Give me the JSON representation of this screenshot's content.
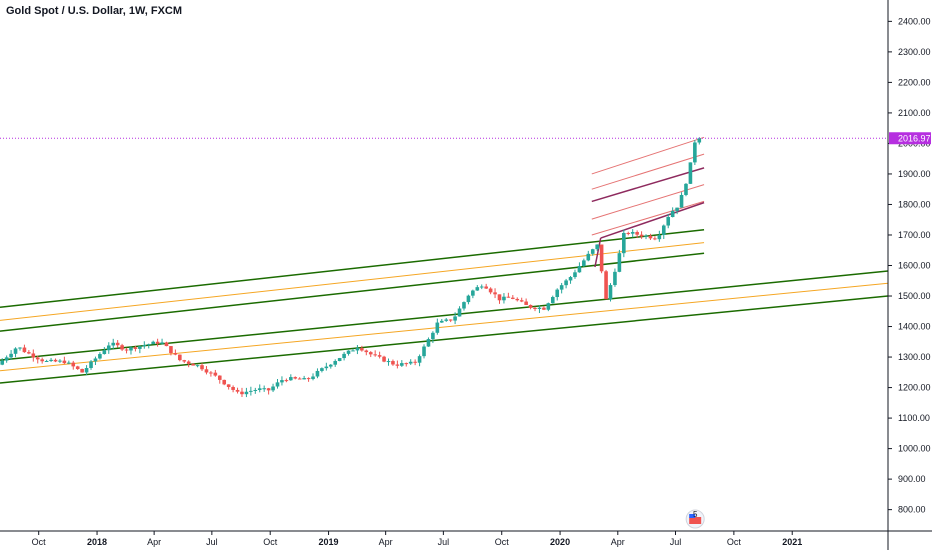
{
  "header": {
    "title": "Gold Spot / U.S. Dollar, 1W, FXCM"
  },
  "colors": {
    "up": "#26a69a",
    "down": "#ef5350",
    "channel_green": "#1b6b00",
    "channel_orange": "#f5a623",
    "pitchfork_red": "#e57373",
    "pitchfork_dark": "#8e2a5e",
    "last_price": "#b62fe0",
    "axis": "#131722"
  },
  "icons": {
    "badge": "flag-badge-icon",
    "badge_count": "5"
  },
  "chart_data": {
    "type": "candlestick",
    "title": "Gold Spot / U.S. Dollar, 1W, FXCM",
    "ylim": [
      730,
      2470
    ],
    "y_ticks": [
      800,
      900,
      1000,
      1100,
      1200,
      1300,
      1400,
      1500,
      1600,
      1700,
      1800,
      1900,
      2000,
      2100,
      2200,
      2300,
      2400
    ],
    "y_tick_labels": [
      "800.00",
      "900.00",
      "1000.00",
      "1100.00",
      "1200.00",
      "1300.00",
      "1400.00",
      "1500.00",
      "1600.00",
      "1700.00",
      "1800.00",
      "1900.00",
      "2000.00",
      "2100.00",
      "2200.00",
      "2300.00",
      "2400.00"
    ],
    "x_range": [
      "2017-08-01",
      "2021-06-01"
    ],
    "x_ticks": [
      {
        "date": "2017-10-01",
        "label": "Oct",
        "year": false
      },
      {
        "date": "2018-01-01",
        "label": "2018",
        "year": true
      },
      {
        "date": "2018-04-01",
        "label": "Apr",
        "year": false
      },
      {
        "date": "2018-07-01",
        "label": "Jul",
        "year": false
      },
      {
        "date": "2018-10-01",
        "label": "Oct",
        "year": false
      },
      {
        "date": "2019-01-01",
        "label": "2019",
        "year": true
      },
      {
        "date": "2019-04-01",
        "label": "Apr",
        "year": false
      },
      {
        "date": "2019-07-01",
        "label": "Jul",
        "year": false
      },
      {
        "date": "2019-10-01",
        "label": "Oct",
        "year": false
      },
      {
        "date": "2020-01-01",
        "label": "2020",
        "year": true
      },
      {
        "date": "2020-04-01",
        "label": "Apr",
        "year": false
      },
      {
        "date": "2020-07-01",
        "label": "Jul",
        "year": false
      },
      {
        "date": "2020-10-01",
        "label": "Oct",
        "year": false
      },
      {
        "date": "2021-01-01",
        "label": "2021",
        "year": true
      }
    ],
    "last_price": 2016.97,
    "last_price_label": "2016.97",
    "price_path": [
      [
        "2017-08-01",
        1275
      ],
      [
        "2017-09-01",
        1335
      ],
      [
        "2017-09-15",
        1315
      ],
      [
        "2017-10-15",
        1285
      ],
      [
        "2017-11-15",
        1285
      ],
      [
        "2017-12-12",
        1250
      ],
      [
        "2018-01-25",
        1345
      ],
      [
        "2018-02-20",
        1325
      ],
      [
        "2018-03-20",
        1340
      ],
      [
        "2018-04-15",
        1350
      ],
      [
        "2018-05-15",
        1290
      ],
      [
        "2018-06-15",
        1270
      ],
      [
        "2018-07-15",
        1230
      ],
      [
        "2018-08-15",
        1180
      ],
      [
        "2018-09-15",
        1195
      ],
      [
        "2018-10-01",
        1190
      ],
      [
        "2018-10-26",
        1230
      ],
      [
        "2018-12-01",
        1225
      ],
      [
        "2019-01-15",
        1290
      ],
      [
        "2019-02-20",
        1335
      ],
      [
        "2019-03-15",
        1305
      ],
      [
        "2019-04-20",
        1275
      ],
      [
        "2019-05-20",
        1280
      ],
      [
        "2019-06-05",
        1335
      ],
      [
        "2019-06-25",
        1410
      ],
      [
        "2019-07-20",
        1425
      ],
      [
        "2019-08-15",
        1510
      ],
      [
        "2019-09-05",
        1540
      ],
      [
        "2019-10-01",
        1490
      ],
      [
        "2019-10-20",
        1495
      ],
      [
        "2019-11-15",
        1465
      ],
      [
        "2019-12-10",
        1460
      ],
      [
        "2020-01-01",
        1525
      ],
      [
        "2020-01-20",
        1560
      ],
      [
        "2020-02-20",
        1640
      ],
      [
        "2020-03-05",
        1670
      ],
      [
        "2020-03-16",
        1480
      ],
      [
        "2020-04-05",
        1620
      ],
      [
        "2020-04-15",
        1710
      ],
      [
        "2020-05-10",
        1700
      ],
      [
        "2020-06-05",
        1690
      ],
      [
        "2020-06-25",
        1770
      ],
      [
        "2020-07-10",
        1800
      ],
      [
        "2020-07-25",
        1900
      ],
      [
        "2020-08-05",
        2016.97
      ]
    ],
    "trendlines": [
      {
        "color": "channel_green",
        "width": 1.5,
        "from": [
          "2017-08-01",
          1463
        ],
        "to": [
          "2020-08-15",
          1717
        ]
      },
      {
        "color": "channel_orange",
        "width": 1,
        "from": [
          "2017-08-01",
          1420
        ],
        "to": [
          "2020-08-15",
          1675
        ]
      },
      {
        "color": "channel_green",
        "width": 1.5,
        "from": [
          "2017-08-01",
          1385
        ],
        "to": [
          "2020-08-15",
          1640
        ]
      },
      {
        "color": "channel_green",
        "width": 1.5,
        "from": [
          "2017-08-01",
          1290
        ],
        "to": [
          "2021-06-01",
          1582
        ]
      },
      {
        "color": "channel_orange",
        "width": 1,
        "from": [
          "2017-08-01",
          1255
        ],
        "to": [
          "2021-06-01",
          1542
        ]
      },
      {
        "color": "channel_green",
        "width": 1.5,
        "from": [
          "2017-08-01",
          1215
        ],
        "to": [
          "2021-06-01",
          1500
        ]
      },
      {
        "color": "pitchfork_red",
        "width": 1,
        "from": [
          "2020-02-20",
          1900
        ],
        "to": [
          "2020-08-15",
          2020
        ]
      },
      {
        "color": "pitchfork_red",
        "width": 1,
        "from": [
          "2020-02-20",
          1850
        ],
        "to": [
          "2020-08-15",
          1965
        ]
      },
      {
        "color": "pitchfork_dark",
        "width": 1.5,
        "from": [
          "2020-02-20",
          1810
        ],
        "to": [
          "2020-08-15",
          1920
        ]
      },
      {
        "color": "pitchfork_red",
        "width": 1,
        "from": [
          "2020-02-20",
          1752
        ],
        "to": [
          "2020-08-15",
          1865
        ]
      },
      {
        "color": "pitchfork_red",
        "width": 1,
        "from": [
          "2020-02-20",
          1700
        ],
        "to": [
          "2020-08-15",
          1810
        ]
      },
      {
        "color": "pitchfork_dark",
        "width": 1.5,
        "from": [
          "2020-03-05",
          1690
        ],
        "to": [
          "2020-08-15",
          1806
        ]
      },
      {
        "color": "pitchfork_dark",
        "width": 1.5,
        "from": [
          "2020-02-25",
          1595
        ],
        "to": [
          "2020-03-05",
          1690
        ]
      }
    ]
  }
}
